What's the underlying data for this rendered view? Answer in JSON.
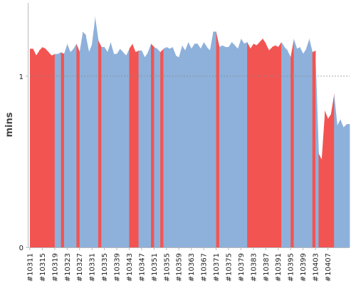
{
  "chart_data": {
    "type": "area",
    "ylabel": "mins",
    "ylim": [
      0,
      1.42
    ],
    "y_ticks": [
      0,
      1
    ],
    "reference_line": {
      "value": 1,
      "style": "dotted"
    },
    "x_tick_labels": [
      "#10311",
      "#10315",
      "#10319",
      "#10323",
      "#10327",
      "#10331",
      "#10335",
      "#10339",
      "#10343",
      "#10347",
      "#10351",
      "#10355",
      "#10359",
      "#10363",
      "#10367",
      "#10371",
      "#10375",
      "#10379",
      "#10383",
      "#10387",
      "#10391",
      "#10395",
      "#10399",
      "#10403",
      "#10407"
    ],
    "builds": [
      {
        "id": "#10311",
        "mins": 1.16,
        "status": "failed"
      },
      {
        "id": "#10312",
        "mins": 1.16,
        "status": "failed"
      },
      {
        "id": "#10313",
        "mins": 1.12,
        "status": "failed"
      },
      {
        "id": "#10314",
        "mins": 1.15,
        "status": "failed"
      },
      {
        "id": "#10315",
        "mins": 1.17,
        "status": "failed"
      },
      {
        "id": "#10316",
        "mins": 1.16,
        "status": "failed"
      },
      {
        "id": "#10317",
        "mins": 1.14,
        "status": "failed"
      },
      {
        "id": "#10318",
        "mins": 1.12,
        "status": "failed"
      },
      {
        "id": "#10319",
        "mins": 1.13,
        "status": "passed"
      },
      {
        "id": "#10320",
        "mins": 1.13,
        "status": "passed"
      },
      {
        "id": "#10321",
        "mins": 1.14,
        "status": "failed"
      },
      {
        "id": "#10322",
        "mins": 1.13,
        "status": "passed"
      },
      {
        "id": "#10323",
        "mins": 1.19,
        "status": "passed"
      },
      {
        "id": "#10324",
        "mins": 1.14,
        "status": "passed"
      },
      {
        "id": "#10325",
        "mins": 1.16,
        "status": "passed"
      },
      {
        "id": "#10326",
        "mins": 1.19,
        "status": "failed"
      },
      {
        "id": "#10327",
        "mins": 1.14,
        "status": "passed"
      },
      {
        "id": "#10328",
        "mins": 1.26,
        "status": "passed"
      },
      {
        "id": "#10329",
        "mins": 1.24,
        "status": "passed"
      },
      {
        "id": "#10330",
        "mins": 1.14,
        "status": "passed"
      },
      {
        "id": "#10331",
        "mins": 1.19,
        "status": "passed"
      },
      {
        "id": "#10332",
        "mins": 1.35,
        "status": "passed"
      },
      {
        "id": "#10333",
        "mins": 1.21,
        "status": "failed"
      },
      {
        "id": "#10334",
        "mins": 1.17,
        "status": "passed"
      },
      {
        "id": "#10335",
        "mins": 1.17,
        "status": "passed"
      },
      {
        "id": "#10336",
        "mins": 1.14,
        "status": "passed"
      },
      {
        "id": "#10337",
        "mins": 1.2,
        "status": "passed"
      },
      {
        "id": "#10338",
        "mins": 1.13,
        "status": "passed"
      },
      {
        "id": "#10339",
        "mins": 1.13,
        "status": "passed"
      },
      {
        "id": "#10340",
        "mins": 1.16,
        "status": "passed"
      },
      {
        "id": "#10341",
        "mins": 1.14,
        "status": "passed"
      },
      {
        "id": "#10342",
        "mins": 1.12,
        "status": "passed"
      },
      {
        "id": "#10343",
        "mins": 1.16,
        "status": "failed"
      },
      {
        "id": "#10344",
        "mins": 1.19,
        "status": "failed"
      },
      {
        "id": "#10345",
        "mins": 1.14,
        "status": "failed"
      },
      {
        "id": "#10346",
        "mins": 1.15,
        "status": "passed"
      },
      {
        "id": "#10347",
        "mins": 1.15,
        "status": "passed"
      },
      {
        "id": "#10348",
        "mins": 1.11,
        "status": "passed"
      },
      {
        "id": "#10349",
        "mins": 1.14,
        "status": "passed"
      },
      {
        "id": "#10350",
        "mins": 1.19,
        "status": "failed"
      },
      {
        "id": "#10351",
        "mins": 1.17,
        "status": "passed"
      },
      {
        "id": "#10352",
        "mins": 1.16,
        "status": "passed"
      },
      {
        "id": "#10353",
        "mins": 1.14,
        "status": "failed"
      },
      {
        "id": "#10354",
        "mins": 1.16,
        "status": "passed"
      },
      {
        "id": "#10355",
        "mins": 1.17,
        "status": "passed"
      },
      {
        "id": "#10356",
        "mins": 1.16,
        "status": "passed"
      },
      {
        "id": "#10357",
        "mins": 1.17,
        "status": "passed"
      },
      {
        "id": "#10358",
        "mins": 1.12,
        "status": "passed"
      },
      {
        "id": "#10359",
        "mins": 1.11,
        "status": "passed"
      },
      {
        "id": "#10360",
        "mins": 1.18,
        "status": "passed"
      },
      {
        "id": "#10361",
        "mins": 1.15,
        "status": "passed"
      },
      {
        "id": "#10362",
        "mins": 1.2,
        "status": "passed"
      },
      {
        "id": "#10363",
        "mins": 1.16,
        "status": "passed"
      },
      {
        "id": "#10364",
        "mins": 1.19,
        "status": "passed"
      },
      {
        "id": "#10365",
        "mins": 1.19,
        "status": "passed"
      },
      {
        "id": "#10366",
        "mins": 1.16,
        "status": "passed"
      },
      {
        "id": "#10367",
        "mins": 1.2,
        "status": "passed"
      },
      {
        "id": "#10368",
        "mins": 1.17,
        "status": "passed"
      },
      {
        "id": "#10369",
        "mins": 1.15,
        "status": "passed"
      },
      {
        "id": "#10370",
        "mins": 1.26,
        "status": "passed"
      },
      {
        "id": "#10371",
        "mins": 1.26,
        "status": "failed"
      },
      {
        "id": "#10372",
        "mins": 1.17,
        "status": "passed"
      },
      {
        "id": "#10373",
        "mins": 1.18,
        "status": "passed"
      },
      {
        "id": "#10374",
        "mins": 1.17,
        "status": "passed"
      },
      {
        "id": "#10375",
        "mins": 1.17,
        "status": "passed"
      },
      {
        "id": "#10376",
        "mins": 1.2,
        "status": "passed"
      },
      {
        "id": "#10377",
        "mins": 1.18,
        "status": "passed"
      },
      {
        "id": "#10378",
        "mins": 1.16,
        "status": "passed"
      },
      {
        "id": "#10379",
        "mins": 1.22,
        "status": "passed"
      },
      {
        "id": "#10380",
        "mins": 1.19,
        "status": "passed"
      },
      {
        "id": "#10381",
        "mins": 1.2,
        "status": "failed"
      },
      {
        "id": "#10382",
        "mins": 1.16,
        "status": "failed"
      },
      {
        "id": "#10383",
        "mins": 1.19,
        "status": "failed"
      },
      {
        "id": "#10384",
        "mins": 1.18,
        "status": "failed"
      },
      {
        "id": "#10385",
        "mins": 1.2,
        "status": "failed"
      },
      {
        "id": "#10386",
        "mins": 1.22,
        "status": "failed"
      },
      {
        "id": "#10387",
        "mins": 1.19,
        "status": "failed"
      },
      {
        "id": "#10388",
        "mins": 1.15,
        "status": "failed"
      },
      {
        "id": "#10389",
        "mins": 1.17,
        "status": "failed"
      },
      {
        "id": "#10390",
        "mins": 1.18,
        "status": "failed"
      },
      {
        "id": "#10391",
        "mins": 1.17,
        "status": "failed"
      },
      {
        "id": "#10392",
        "mins": 1.2,
        "status": "passed"
      },
      {
        "id": "#10393",
        "mins": 1.17,
        "status": "passed"
      },
      {
        "id": "#10394",
        "mins": 1.15,
        "status": "passed"
      },
      {
        "id": "#10395",
        "mins": 1.11,
        "status": "failed"
      },
      {
        "id": "#10396",
        "mins": 1.22,
        "status": "passed"
      },
      {
        "id": "#10397",
        "mins": 1.16,
        "status": "passed"
      },
      {
        "id": "#10398",
        "mins": 1.17,
        "status": "passed"
      },
      {
        "id": "#10399",
        "mins": 1.13,
        "status": "passed"
      },
      {
        "id": "#10400",
        "mins": 1.16,
        "status": "passed"
      },
      {
        "id": "#10401",
        "mins": 1.22,
        "status": "passed"
      },
      {
        "id": "#10402",
        "mins": 1.14,
        "status": "failed"
      },
      {
        "id": "#10403",
        "mins": 1.15,
        "status": "passed"
      },
      {
        "id": "#10404",
        "mins": 0.55,
        "status": "failed"
      },
      {
        "id": "#10405",
        "mins": 0.51,
        "status": "failed"
      },
      {
        "id": "#10406",
        "mins": 0.8,
        "status": "failed"
      },
      {
        "id": "#10407",
        "mins": 0.75,
        "status": "failed"
      },
      {
        "id": "#10408",
        "mins": 0.78,
        "status": "failed"
      },
      {
        "id": "#10409",
        "mins": 0.9,
        "status": "passed"
      },
      {
        "id": "#10410",
        "mins": 0.71,
        "status": "passed"
      },
      {
        "id": "#10411",
        "mins": 0.75,
        "status": "passed"
      },
      {
        "id": "#10412",
        "mins": 0.7,
        "status": "passed"
      },
      {
        "id": "#10413",
        "mins": 0.72,
        "status": "passed"
      },
      {
        "id": "#10414",
        "mins": 0.72,
        "status": "passed"
      }
    ],
    "colors": {
      "passed": "#8eb1db",
      "failed": "#f25452",
      "axis": "#bbbbbb",
      "reference_line": "#888888"
    }
  }
}
